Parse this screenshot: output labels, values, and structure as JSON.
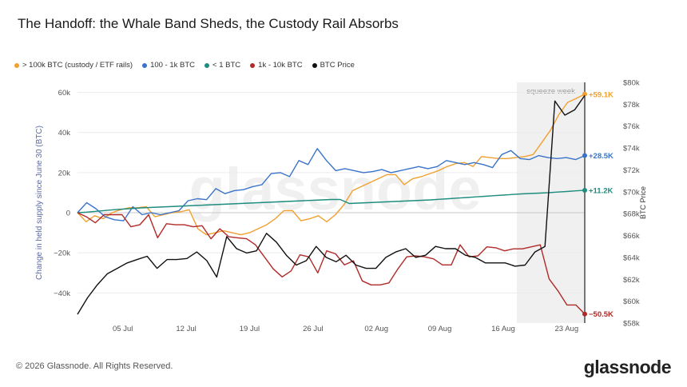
{
  "title": "The Handoff: the Whale Band Sheds, the Custody Rail Absorbs",
  "footer": {
    "copyright": "© 2026 Glassnode. All Rights Reserved.",
    "brand": "glassnode"
  },
  "watermark": "glassnode",
  "chart_data": {
    "type": "line",
    "title": "The Handoff: the Whale Band Sheds, the Custody Rail Absorbs",
    "ylabel": "Change in held supply since June 30 (BTC)",
    "y2label": "BTC Price",
    "ylim": [
      -55000,
      65000
    ],
    "y2lim": [
      58000,
      80000
    ],
    "yticks": [
      -40000,
      -20000,
      0,
      20000,
      40000,
      60000
    ],
    "ytick_labels": [
      "−40k",
      "−20k",
      "0",
      "20k",
      "40k",
      "60k"
    ],
    "y2ticks": [
      58000,
      60000,
      62000,
      64000,
      66000,
      68000,
      70000,
      72000,
      74000,
      76000,
      78000,
      80000
    ],
    "y2tick_labels": [
      "$58k",
      "$60k",
      "$62k",
      "$64k",
      "$66k",
      "$68k",
      "$70k",
      "$72k",
      "$74k",
      "$76k",
      "$78k",
      "$80k"
    ],
    "xlim": [
      0,
      56
    ],
    "xticks": [
      5,
      12,
      19,
      26,
      33,
      40,
      47,
      54
    ],
    "xtick_labels": [
      "05 Jul",
      "12 Jul",
      "19 Jul",
      "26 Jul",
      "02 Aug",
      "09 Aug",
      "16 Aug",
      "23 Aug"
    ],
    "grid": true,
    "legend_position": "top-left",
    "shaded_region": {
      "from": 48.5,
      "to": 56,
      "label": "squeeze week"
    },
    "series": [
      {
        "name": "> 100k BTC (custody / ETF rails)",
        "color": "#f0a030",
        "axis": "left",
        "end_label": "+59.1K",
        "values": [
          0,
          -4500,
          -1500,
          -3000,
          0,
          1500,
          2500,
          2500,
          3000,
          -2000,
          -1000,
          0,
          500,
          1500,
          -8000,
          -11000,
          -10000,
          -9000,
          -10000,
          -11000,
          -10000,
          -8000,
          -6000,
          -3000,
          1000,
          1000,
          -4000,
          -3000,
          -1500,
          -4500,
          -1000,
          4000,
          11000,
          13000,
          15000,
          17000,
          19000,
          19000,
          14000,
          17000,
          18000,
          19500,
          21000,
          23000,
          24500,
          25000,
          23000,
          28000,
          27500,
          27000,
          27000,
          27500,
          28000,
          29000,
          35000,
          41000,
          49000,
          55000,
          57000,
          59100
        ]
      },
      {
        "name": "100 - 1k BTC",
        "color": "#3a74c8",
        "axis": "left",
        "end_label": "+28.5K",
        "values": [
          0,
          5000,
          2000,
          -2000,
          -3500,
          -4000,
          3000,
          -1000,
          0,
          -1000,
          0,
          1000,
          6000,
          7000,
          6500,
          12000,
          9500,
          11000,
          11500,
          13000,
          14000,
          19500,
          20000,
          18000,
          26000,
          24000,
          32000,
          26000,
          21000,
          22000,
          21000,
          20000,
          20500,
          21500,
          20000,
          21000,
          22000,
          23000,
          22000,
          23000,
          26000,
          25000,
          24000,
          25000,
          24000,
          22500,
          29000,
          31000,
          27000,
          26500,
          28500,
          27500,
          27000,
          27500,
          26500,
          28500
        ]
      },
      {
        "name": "< 1 BTC",
        "color": "#1e8c7e",
        "axis": "left",
        "end_label": "+11.2K",
        "values": [
          0,
          300,
          700,
          1100,
          1500,
          1800,
          2100,
          2400,
          2600,
          2800,
          3000,
          3200,
          3400,
          3600,
          3800,
          4000,
          4200,
          4400,
          4600,
          4800,
          5000,
          5200,
          5400,
          5600,
          5800,
          6000,
          6200,
          6400,
          6600,
          6600,
          4600,
          4800,
          5000,
          5200,
          5400,
          5600,
          5800,
          6000,
          6200,
          6400,
          6700,
          7000,
          7300,
          7600,
          7900,
          8200,
          8500,
          8800,
          9100,
          9400,
          9600,
          9800,
          10000,
          10300,
          10600,
          10900,
          11200
        ]
      },
      {
        "name": "1k - 10k BTC",
        "color": "#b02a28",
        "axis": "left",
        "end_label": "−50.5K",
        "values": [
          0,
          -2000,
          -5000,
          -1000,
          -1000,
          -1000,
          -7000,
          -6000,
          -1000,
          -12500,
          -5500,
          -6000,
          -6000,
          -7000,
          -6500,
          -13000,
          -8000,
          -12000,
          -12500,
          -13000,
          -16000,
          -22000,
          -28000,
          -32000,
          -29000,
          -21000,
          -22000,
          -30000,
          -19000,
          -20500,
          -26000,
          -24000,
          -34000,
          -36000,
          -36000,
          -35000,
          -28000,
          -22000,
          -21500,
          -22000,
          -23000,
          -26000,
          -26000,
          -16000,
          -22000,
          -21500,
          -17000,
          -17500,
          -19000,
          -18000,
          -18000,
          -17000,
          -16000,
          -33000,
          -39000,
          -46000,
          -46000,
          -50500
        ]
      },
      {
        "name": "BTC Price",
        "color": "#111111",
        "axis": "right",
        "values": [
          58800,
          60300,
          61500,
          62500,
          63000,
          63500,
          63800,
          64100,
          63000,
          63800,
          63800,
          63900,
          64500,
          63700,
          62200,
          65900,
          64800,
          64400,
          64600,
          66200,
          65400,
          64200,
          63300,
          63700,
          65000,
          64000,
          63600,
          64200,
          63300,
          63000,
          63000,
          64000,
          64500,
          64800,
          64000,
          64200,
          65000,
          64800,
          64800,
          64200,
          64000,
          63500,
          63500,
          63500,
          63200,
          63300,
          64500,
          65000,
          78300,
          77000,
          77500,
          78800
        ]
      }
    ]
  }
}
